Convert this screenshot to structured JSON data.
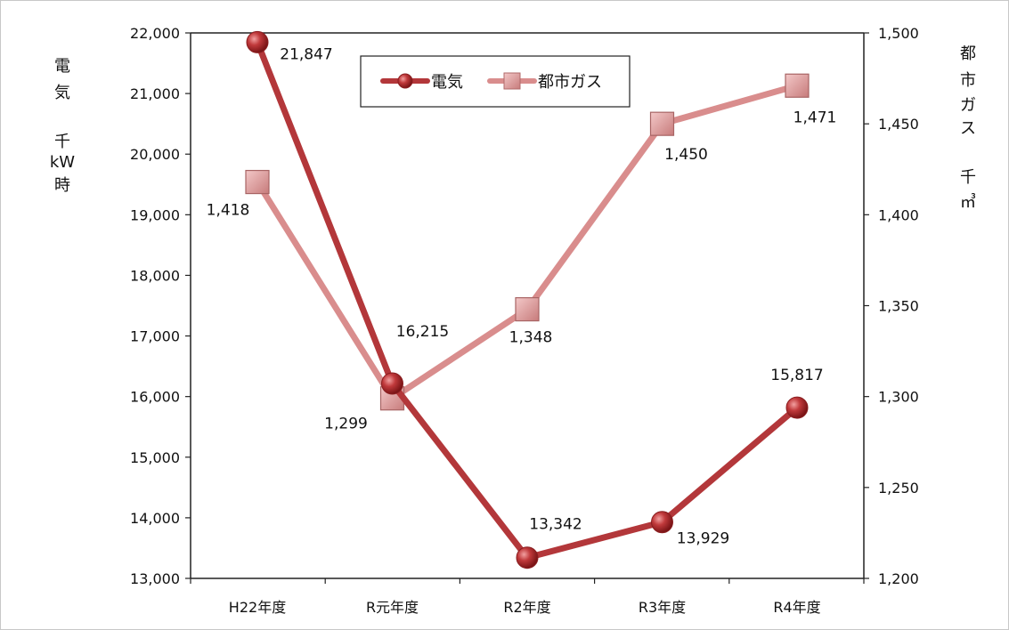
{
  "chart_data": {
    "type": "line",
    "categories": [
      "H22年度",
      "R元年度",
      "R2年度",
      "R3年度",
      "R4年度"
    ],
    "series": [
      {
        "name": "電気",
        "axis": "left",
        "color": "#b3373a",
        "marker": "circle",
        "values": [
          21847,
          16215,
          13342,
          13929,
          15817
        ],
        "labels": [
          "21,847",
          "16,215",
          "13,342",
          "13,929",
          "15,817"
        ]
      },
      {
        "name": "都市ガス",
        "axis": "right",
        "color": "#d98d8d",
        "marker": "square",
        "values": [
          1418,
          1299,
          1348,
          1450,
          1471
        ],
        "labels": [
          "1,418",
          "1,299",
          "1,348",
          "1,450",
          "1,471"
        ]
      }
    ],
    "y_left": {
      "label_lines": [
        "電",
        "気",
        "",
        "千",
        "kW",
        "時"
      ],
      "ylim": [
        13000,
        22000
      ],
      "ticks": [
        "13,000",
        "14,000",
        "15,000",
        "16,000",
        "17,000",
        "18,000",
        "19,000",
        "20,000",
        "21,000",
        "22,000"
      ],
      "tick_values": [
        13000,
        14000,
        15000,
        16000,
        17000,
        18000,
        19000,
        20000,
        21000,
        22000
      ]
    },
    "y_right": {
      "label_lines": [
        "都",
        "市",
        "ガ",
        "ス",
        "",
        "千",
        "㎥"
      ],
      "ylim": [
        1200,
        1500
      ],
      "ticks": [
        "1,200",
        "1,250",
        "1,300",
        "1,350",
        "1,400",
        "1,450",
        "1,500"
      ],
      "tick_values": [
        1200,
        1250,
        1300,
        1350,
        1400,
        1450,
        1500
      ]
    },
    "grid": false,
    "legend_position": "top-center"
  }
}
